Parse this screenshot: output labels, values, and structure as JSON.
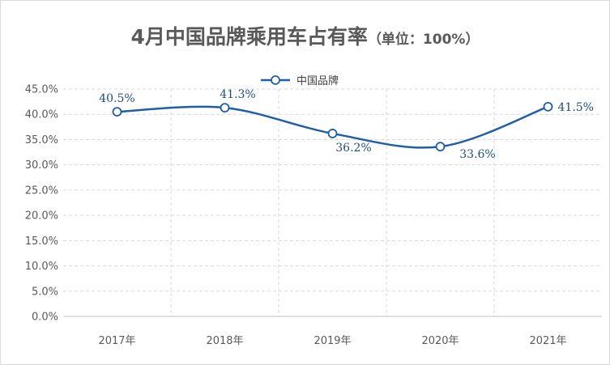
{
  "chart_data": {
    "type": "line",
    "title": "4月中国品牌乘用车占有率",
    "subtitle": "（单位：100%）",
    "xlabel": "",
    "ylabel": "",
    "categories": [
      "2017年",
      "2018年",
      "2019年",
      "2020年",
      "2021年"
    ],
    "series": [
      {
        "name": "中国品牌",
        "values": [
          40.5,
          41.3,
          36.2,
          33.6,
          41.5
        ],
        "labels": [
          "40.5%",
          "41.3%",
          "36.2%",
          "33.6%",
          "41.5%"
        ],
        "color": "#1f5fa6"
      }
    ],
    "ylim": [
      0,
      45
    ],
    "yticks": [
      "0.0%",
      "5.0%",
      "10.0%",
      "15.0%",
      "20.0%",
      "25.0%",
      "30.0%",
      "35.0%",
      "40.0%",
      "45.0%"
    ],
    "grid": true,
    "legend": "top-center",
    "smooth": true
  }
}
